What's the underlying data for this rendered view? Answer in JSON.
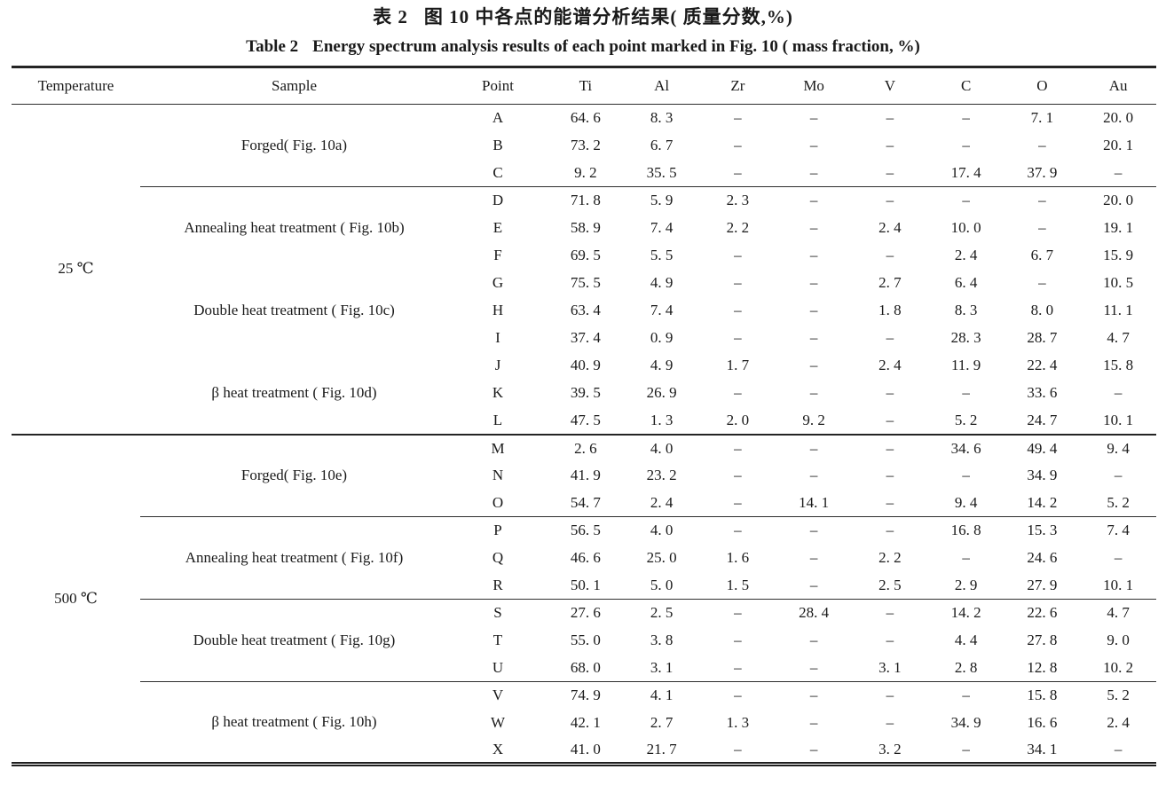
{
  "caption": {
    "zh_label": "表 2",
    "zh_text": "图 10 中各点的能谱分析结果( 质量分数,%)",
    "en_label": "Table 2",
    "en_text": "Energy spectrum analysis results of each point marked in Fig. 10 ( mass fraction, %)"
  },
  "colors": {
    "text": "#1a1a1a",
    "rule": "#2b2b2b",
    "background": "#ffffff"
  },
  "table": {
    "columns": [
      "Temperature",
      "Sample",
      "Point",
      "Ti",
      "Al",
      "Zr",
      "Mo",
      "V",
      "C",
      "O",
      "Au"
    ],
    "temp_groups": [
      {
        "label": "25 ℃",
        "rows": 12
      },
      {
        "label": "500 ℃",
        "rows": 12
      }
    ],
    "sample_groups": [
      {
        "label": "Forged( Fig. 10a)",
        "rows": 3,
        "sep": false,
        "full": false
      },
      {
        "label": "Annealing heat treatment ( Fig. 10b)",
        "rows": 3,
        "sep": true,
        "full": false
      },
      {
        "label": "Double heat treatment ( Fig. 10c)",
        "rows": 3,
        "sep": false,
        "full": false
      },
      {
        "label": "β heat treatment ( Fig. 10d)",
        "rows": 3,
        "sep": false,
        "full": false
      },
      {
        "label": "Forged( Fig. 10e)",
        "rows": 3,
        "sep": true,
        "full": true
      },
      {
        "label": "Annealing heat treatment ( Fig. 10f)",
        "rows": 3,
        "sep": true,
        "full": false
      },
      {
        "label": "Double heat treatment ( Fig. 10g)",
        "rows": 3,
        "sep": true,
        "full": false
      },
      {
        "label": "β heat treatment ( Fig. 10h)",
        "rows": 3,
        "sep": true,
        "full": false
      }
    ],
    "rows": [
      {
        "point": "A",
        "values": [
          "64. 6",
          "8. 3",
          "–",
          "–",
          "–",
          "–",
          "7. 1",
          "20. 0"
        ]
      },
      {
        "point": "B",
        "values": [
          "73. 2",
          "6. 7",
          "–",
          "–",
          "–",
          "–",
          "–",
          "20. 1"
        ]
      },
      {
        "point": "C",
        "values": [
          "9. 2",
          "35. 5",
          "–",
          "–",
          "–",
          "17. 4",
          "37. 9",
          "–"
        ]
      },
      {
        "point": "D",
        "values": [
          "71. 8",
          "5. 9",
          "2. 3",
          "–",
          "–",
          "–",
          "–",
          "20. 0"
        ]
      },
      {
        "point": "E",
        "values": [
          "58. 9",
          "7. 4",
          "2. 2",
          "–",
          "2. 4",
          "10. 0",
          "–",
          "19. 1"
        ]
      },
      {
        "point": "F",
        "values": [
          "69. 5",
          "5. 5",
          "–",
          "–",
          "–",
          "2. 4",
          "6. 7",
          "15. 9"
        ]
      },
      {
        "point": "G",
        "values": [
          "75. 5",
          "4. 9",
          "–",
          "–",
          "2. 7",
          "6. 4",
          "–",
          "10. 5"
        ]
      },
      {
        "point": "H",
        "values": [
          "63. 4",
          "7. 4",
          "–",
          "–",
          "1. 8",
          "8. 3",
          "8. 0",
          "11. 1"
        ]
      },
      {
        "point": "I",
        "values": [
          "37. 4",
          "0. 9",
          "–",
          "–",
          "–",
          "28. 3",
          "28. 7",
          "4. 7"
        ]
      },
      {
        "point": "J",
        "values": [
          "40. 9",
          "4. 9",
          "1. 7",
          "–",
          "2. 4",
          "11. 9",
          "22. 4",
          "15. 8"
        ]
      },
      {
        "point": "K",
        "values": [
          "39. 5",
          "26. 9",
          "–",
          "–",
          "–",
          "–",
          "33. 6",
          "–"
        ]
      },
      {
        "point": "L",
        "values": [
          "47. 5",
          "1. 3",
          "2. 0",
          "9. 2",
          "–",
          "5. 2",
          "24. 7",
          "10. 1"
        ]
      },
      {
        "point": "M",
        "values": [
          "2. 6",
          "4. 0",
          "–",
          "–",
          "–",
          "34. 6",
          "49. 4",
          "9. 4"
        ]
      },
      {
        "point": "N",
        "values": [
          "41. 9",
          "23. 2",
          "–",
          "–",
          "–",
          "–",
          "34. 9",
          "–"
        ]
      },
      {
        "point": "O",
        "values": [
          "54. 7",
          "2. 4",
          "–",
          "14. 1",
          "–",
          "9. 4",
          "14. 2",
          "5. 2"
        ]
      },
      {
        "point": "P",
        "values": [
          "56. 5",
          "4. 0",
          "–",
          "–",
          "–",
          "16. 8",
          "15. 3",
          "7. 4"
        ]
      },
      {
        "point": "Q",
        "values": [
          "46. 6",
          "25. 0",
          "1. 6",
          "–",
          "2. 2",
          "–",
          "24. 6",
          "–"
        ]
      },
      {
        "point": "R",
        "values": [
          "50. 1",
          "5. 0",
          "1. 5",
          "–",
          "2. 5",
          "2. 9",
          "27. 9",
          "10. 1"
        ]
      },
      {
        "point": "S",
        "values": [
          "27. 6",
          "2. 5",
          "–",
          "28. 4",
          "–",
          "14. 2",
          "22. 6",
          "4. 7"
        ]
      },
      {
        "point": "T",
        "values": [
          "55. 0",
          "3. 8",
          "–",
          "–",
          "–",
          "4. 4",
          "27. 8",
          "9. 0"
        ]
      },
      {
        "point": "U",
        "values": [
          "68. 0",
          "3. 1",
          "–",
          "–",
          "3. 1",
          "2. 8",
          "12. 8",
          "10. 2"
        ]
      },
      {
        "point": "V",
        "values": [
          "74. 9",
          "4. 1",
          "–",
          "–",
          "–",
          "–",
          "15. 8",
          "5. 2"
        ]
      },
      {
        "point": "W",
        "values": [
          "42. 1",
          "2. 7",
          "1. 3",
          "–",
          "–",
          "34. 9",
          "16. 6",
          "2. 4"
        ]
      },
      {
        "point": "X",
        "values": [
          "41. 0",
          "21. 7",
          "–",
          "–",
          "3. 2",
          "–",
          "34. 1",
          "–"
        ]
      }
    ]
  }
}
